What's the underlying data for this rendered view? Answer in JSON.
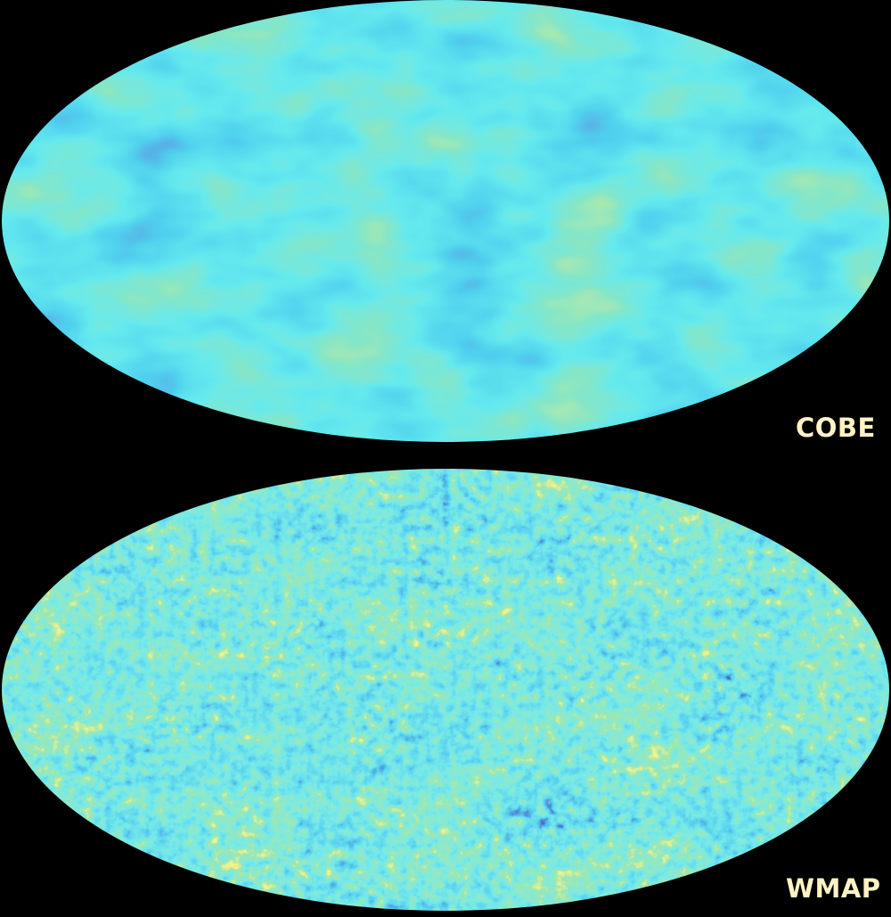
{
  "figure": {
    "background": "#000000",
    "maps": [
      {
        "label": "COBE",
        "projection": "mollweide",
        "colormap": [
          "#1c1f7a",
          "#1d4fc0",
          "#14a7dc",
          "#22d2d8",
          "#3cc98e",
          "#7ed05c",
          "#d6e85a"
        ],
        "icon": "cmb-sky-map-low-resolution"
      },
      {
        "label": "WMAP",
        "projection": "mollweide",
        "colormap": [
          "#0d0f5a",
          "#1b2fa6",
          "#1aa3de",
          "#2fd0cf",
          "#55cc70",
          "#f1e93a",
          "#f07d24",
          "#d8201e"
        ],
        "icon": "cmb-sky-map-high-resolution"
      }
    ],
    "label_color": "#fff3c4"
  }
}
